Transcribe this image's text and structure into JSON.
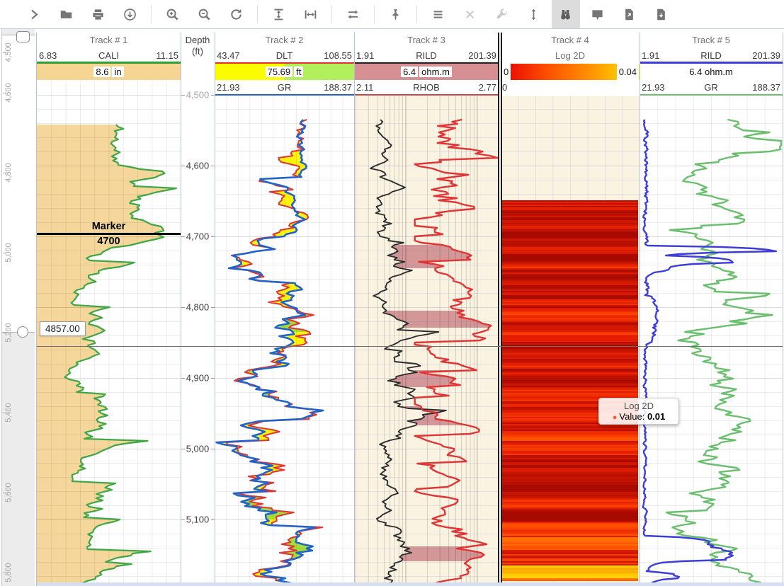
{
  "toolbar": {
    "buttons": [
      {
        "icon": "expand-panel"
      },
      {
        "icon": "open-folder"
      },
      {
        "icon": "print"
      },
      {
        "icon": "download"
      },
      {
        "sep": true
      },
      {
        "icon": "zoom-in"
      },
      {
        "icon": "zoom-out"
      },
      {
        "icon": "reset-zoom"
      },
      {
        "sep": true
      },
      {
        "icon": "fit-height"
      },
      {
        "icon": "fit-width"
      },
      {
        "sep": true
      },
      {
        "icon": "swap-orientation"
      },
      {
        "sep": true
      },
      {
        "icon": "pin"
      },
      {
        "sep": true
      },
      {
        "icon": "menu"
      },
      {
        "icon": "close",
        "state": "disabled"
      },
      {
        "icon": "settings-wrench",
        "state": "disabled"
      },
      {
        "icon": "vertical-scale"
      },
      {
        "icon": "inspect-binoculars",
        "state": "active"
      },
      {
        "icon": "comment"
      },
      {
        "icon": "export-file"
      },
      {
        "icon": "import-file"
      }
    ]
  },
  "overview_ruler": {
    "labels": [
      "4,500",
      "4,600",
      "4,800",
      "5,000",
      "5,200",
      "5,400",
      "5,600",
      "5,800"
    ]
  },
  "depth_axis": {
    "title": "Depth",
    "unit": "(ft)",
    "labels": [
      "4,500",
      "4,600",
      "4,700",
      "4,800",
      "4,900",
      "5,000",
      "5,100"
    ]
  },
  "tracks": [
    {
      "title": "Track # 1",
      "curves": [
        {
          "name": "CALI",
          "min": "6.83",
          "max": "11.15",
          "value": "8.6",
          "unit": "in"
        }
      ]
    },
    {
      "title": "Track # 2",
      "curves": [
        {
          "name": "DLT",
          "min": "43.47",
          "max": "108.55",
          "value": "75.69",
          "unit": "ft"
        },
        {
          "name": "GR",
          "min": "21.93",
          "max": "188.37"
        }
      ]
    },
    {
      "title": "Track # 3",
      "curves": [
        {
          "name": "RILD",
          "min": "1.91",
          "max": "201.39",
          "value": "6.4",
          "unit": "ohm.m"
        },
        {
          "name": "RHOB",
          "min": "2.11",
          "max": "2.77"
        }
      ]
    },
    {
      "title": "Track # 4",
      "curves": [
        {
          "name": "Log 2D",
          "colorbar_min": "0",
          "colorbar_max": "0.04",
          "axis_min": "0"
        }
      ]
    },
    {
      "title": "Track # 5",
      "curves": [
        {
          "name": "RILD",
          "min": "1.91",
          "max": "201.39",
          "value": "6.4",
          "unit": "ohm.m"
        },
        {
          "name": "GR",
          "min": "21.93",
          "max": "188.37"
        }
      ]
    }
  ],
  "marker": {
    "label": "Marker",
    "depth": "4700"
  },
  "depth_readout": {
    "value": "4857.00"
  },
  "cursor_tooltip": {
    "title": "Log 2D",
    "value_label": "Value:",
    "value": "0.01"
  },
  "colors": {
    "cali_green": "#3fa744",
    "cali_fill": "#f5d79b",
    "band_orange": "#f6d593",
    "dlt_red": "#e23434",
    "gr_blue": "#1f63cc",
    "fill_yellow": "#fff200",
    "fill_green": "#9cdc3c",
    "band_yellow": "#fcfc00",
    "band_lime": "#b2ef5c",
    "rild_black": "#2d2d2d",
    "rhob_red": "#e23434",
    "fill_pink": "#cf8d90",
    "band_rose": "#d68f92",
    "rild_blue": "#3d3ddb",
    "gr_green": "#68c06c",
    "heat_min": "#e60000",
    "heat_max": "#ffee00",
    "track_border": "#b3bedd"
  }
}
